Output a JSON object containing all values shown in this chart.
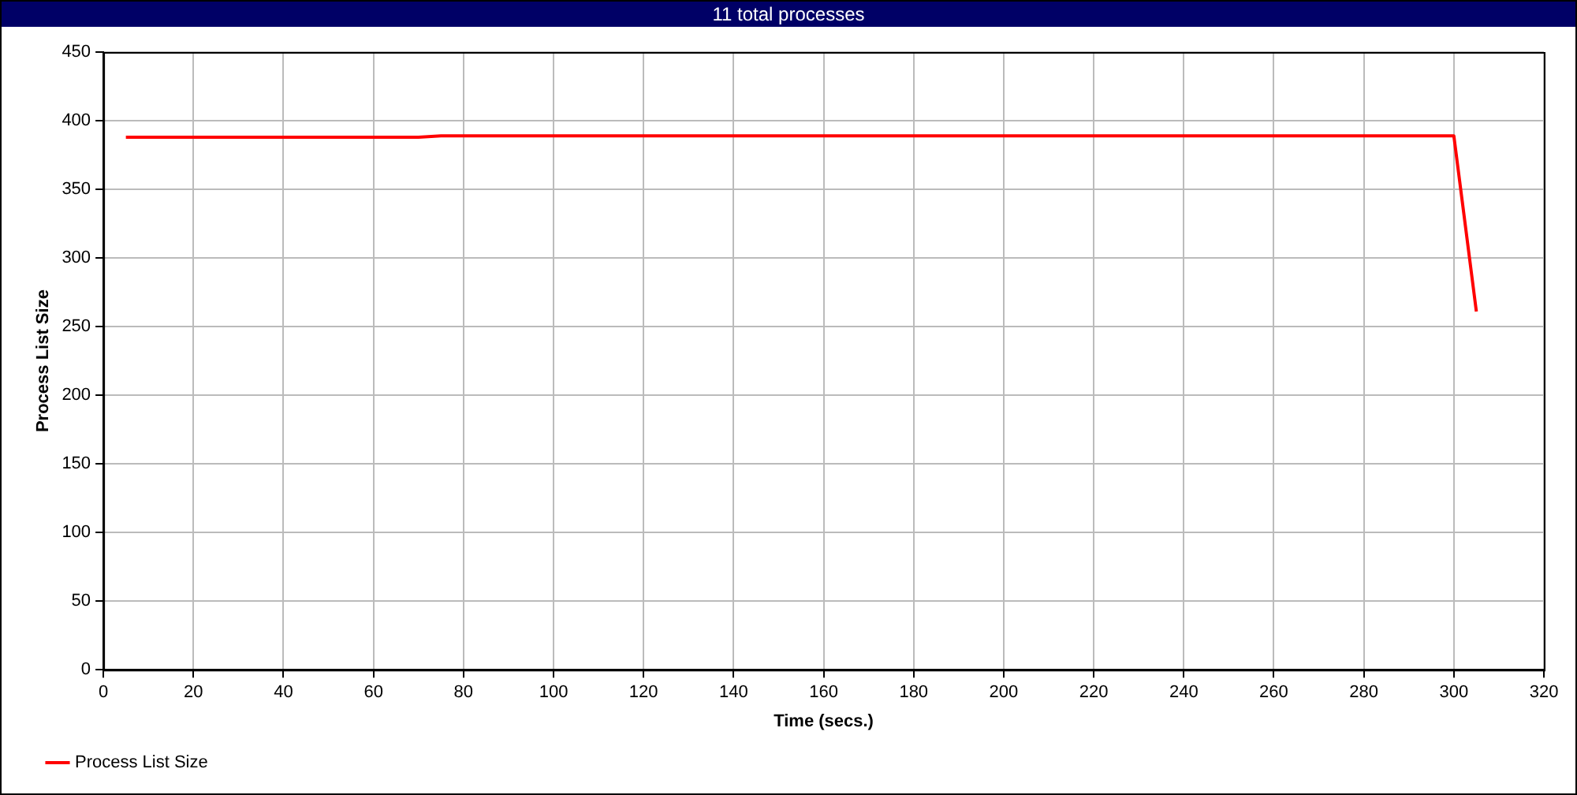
{
  "chart_data": {
    "type": "line",
    "title": "11 total processes",
    "xlabel": "Time (secs.)",
    "ylabel": "Process List Size",
    "series": [
      {
        "name": "Process List Size",
        "color": "#ff0000",
        "x": [
          5,
          70,
          75,
          300,
          305
        ],
        "values": [
          388,
          388,
          389,
          389,
          261
        ]
      }
    ],
    "xlim": [
      0,
      320
    ],
    "xticks": [
      0,
      20,
      40,
      60,
      80,
      100,
      120,
      140,
      160,
      180,
      200,
      220,
      240,
      260,
      280,
      300,
      320
    ],
    "ylim": [
      0,
      450
    ],
    "yticks": [
      0,
      50,
      100,
      150,
      200,
      250,
      300,
      350,
      400,
      450
    ],
    "grid": true,
    "legend": "bottom left",
    "marker": "none",
    "line_style": "solid"
  }
}
